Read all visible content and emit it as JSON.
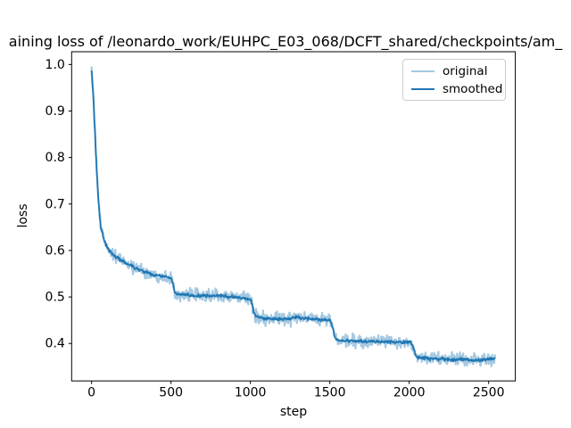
{
  "title": "aining loss of /leonardo_work/EUHPC_E03_068/DCFT_shared/checkpoints/am_",
  "legend": {
    "items": [
      {
        "label": "original",
        "color": "rgba(31,119,180,0.40)"
      },
      {
        "label": "smoothed",
        "color": "#1f77b4"
      }
    ]
  },
  "chart_data": {
    "type": "line",
    "title": "aining loss of /leonardo_work/EUHPC_E03_068/DCFT_shared/checkpoints/am_",
    "xlabel": "step",
    "ylabel": "loss",
    "xlim": [
      -125.5,
      2668
    ],
    "ylim": [
      0.3195,
      1.0275
    ],
    "xticks": [
      0,
      500,
      1000,
      1500,
      2000,
      2500
    ],
    "yticks": [
      0.4,
      0.5,
      0.6,
      0.7,
      0.8,
      0.9,
      1.0
    ],
    "grid": false,
    "legend_position": "upper right",
    "x_start": 0,
    "x_end": 2541,
    "sample_interval": 3,
    "series": [
      {
        "name": "original",
        "color": "rgba(31,119,180,0.40)",
        "line_width": 2.2,
        "noise_amp": 0.012,
        "seed": 1234
      },
      {
        "name": "smoothed",
        "color": "#1f77b4",
        "line_width": 1.8,
        "noise_amp": 0.003,
        "seed": 77
      }
    ],
    "smoothed_keypoints": [
      [
        0,
        0.988
      ],
      [
        10,
        0.94
      ],
      [
        20,
        0.865
      ],
      [
        30,
        0.79
      ],
      [
        40,
        0.725
      ],
      [
        50,
        0.675
      ],
      [
        60,
        0.648
      ],
      [
        75,
        0.628
      ],
      [
        90,
        0.613
      ],
      [
        110,
        0.6
      ],
      [
        135,
        0.591
      ],
      [
        165,
        0.584
      ],
      [
        200,
        0.576
      ],
      [
        240,
        0.568
      ],
      [
        280,
        0.562
      ],
      [
        320,
        0.556
      ],
      [
        360,
        0.551
      ],
      [
        400,
        0.547
      ],
      [
        440,
        0.545
      ],
      [
        475,
        0.543
      ],
      [
        500,
        0.541
      ],
      [
        512,
        0.53
      ],
      [
        522,
        0.513
      ],
      [
        535,
        0.507
      ],
      [
        560,
        0.505
      ],
      [
        620,
        0.503
      ],
      [
        700,
        0.502
      ],
      [
        780,
        0.503
      ],
      [
        860,
        0.501
      ],
      [
        940,
        0.498
      ],
      [
        1000,
        0.496
      ],
      [
        1012,
        0.485
      ],
      [
        1022,
        0.465
      ],
      [
        1035,
        0.458
      ],
      [
        1080,
        0.454
      ],
      [
        1150,
        0.452
      ],
      [
        1220,
        0.453
      ],
      [
        1300,
        0.456
      ],
      [
        1360,
        0.454
      ],
      [
        1430,
        0.452
      ],
      [
        1500,
        0.45
      ],
      [
        1515,
        0.44
      ],
      [
        1528,
        0.418
      ],
      [
        1540,
        0.409
      ],
      [
        1570,
        0.406
      ],
      [
        1650,
        0.405
      ],
      [
        1750,
        0.404
      ],
      [
        1850,
        0.404
      ],
      [
        1950,
        0.403
      ],
      [
        2010,
        0.402
      ],
      [
        2025,
        0.393
      ],
      [
        2038,
        0.376
      ],
      [
        2052,
        0.37
      ],
      [
        2100,
        0.368
      ],
      [
        2180,
        0.367
      ],
      [
        2260,
        0.366
      ],
      [
        2340,
        0.365
      ],
      [
        2420,
        0.364
      ],
      [
        2480,
        0.365
      ],
      [
        2541,
        0.368
      ]
    ]
  }
}
